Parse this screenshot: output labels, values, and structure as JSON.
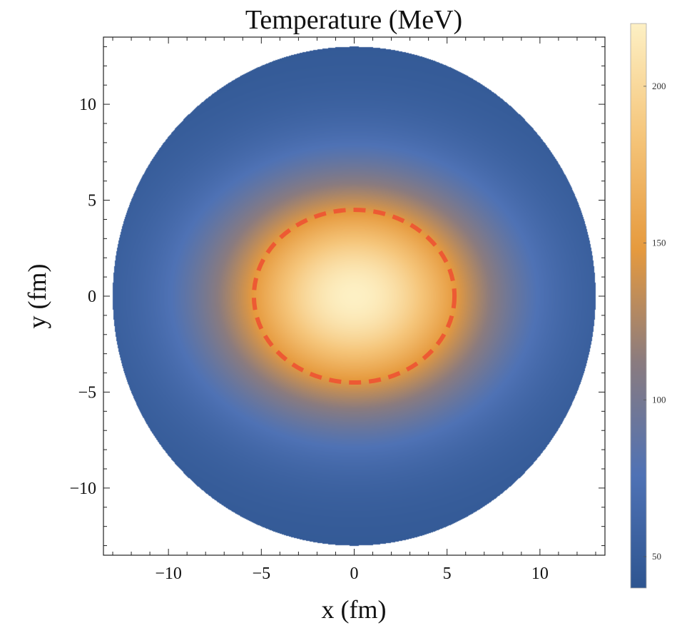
{
  "chart_data": {
    "type": "heatmap",
    "title": "Temperature (MeV)",
    "xlabel": "x (fm)",
    "ylabel": "y (fm)",
    "xlim": [
      -13.5,
      13.5
    ],
    "ylim": [
      -13.5,
      13.5
    ],
    "x_ticks": [
      {
        "value": -10,
        "label": "−10"
      },
      {
        "value": -5,
        "label": "−5"
      },
      {
        "value": 0,
        "label": "0"
      },
      {
        "value": 5,
        "label": "5"
      },
      {
        "value": 10,
        "label": "10"
      }
    ],
    "y_ticks": [
      {
        "value": 10,
        "label": "10"
      },
      {
        "value": 5,
        "label": "5"
      },
      {
        "value": 0,
        "label": "0"
      },
      {
        "value": -5,
        "label": "−5"
      },
      {
        "value": -10,
        "label": "−10"
      }
    ],
    "colorbar": {
      "range": [
        40,
        220
      ],
      "ticks": [
        {
          "value": 50,
          "label": "50"
        },
        {
          "value": 100,
          "label": "100"
        },
        {
          "value": 150,
          "label": "150"
        },
        {
          "value": 200,
          "label": "200"
        }
      ],
      "colormap": [
        "#2e5590",
        "#4f72b5",
        "#8a7b7f",
        "#e69a3e",
        "#f5c57a",
        "#fdf0c4"
      ]
    },
    "field": {
      "shape": "disk",
      "radius_fm": 13,
      "center_fm": [
        0,
        0
      ],
      "peak_temperature_MeV": 220,
      "edge_temperature_MeV": 45,
      "gaussian_width_x_fm": 7.5,
      "gaussian_width_y_fm": 6.0
    },
    "contour": {
      "style": "dashed",
      "color": "#ed5a33",
      "semi_axis_x_fm": 5.4,
      "semi_axis_y_fm": 4.5
    },
    "grid": false,
    "legend": "colorbar right"
  }
}
